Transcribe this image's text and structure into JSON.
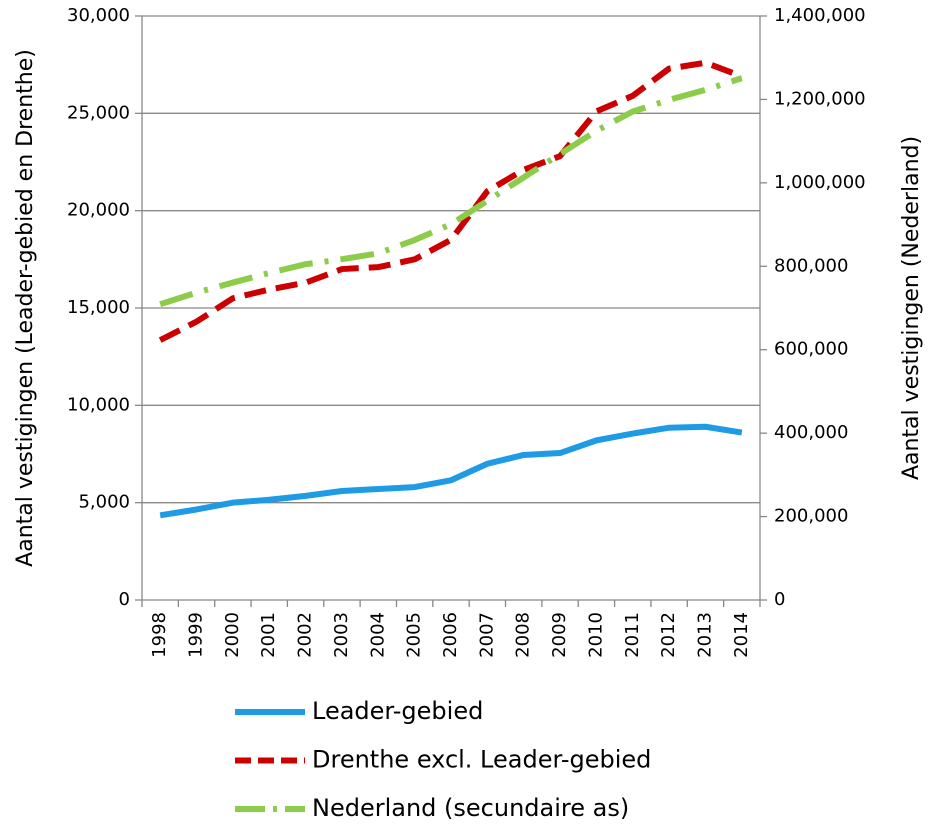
{
  "chart_data": {
    "type": "line",
    "y_label": "Aantal vestigingen (Leader-gebied en Drenthe)",
    "y2_label": "Aantal vestigingen (Nederland)",
    "categories": [
      "1998",
      "1999",
      "2000",
      "2001",
      "2002",
      "2003",
      "2004",
      "2005",
      "2006",
      "2007",
      "2008",
      "2009",
      "2010",
      "2011",
      "2012",
      "2013",
      "2014"
    ],
    "series": [
      {
        "name": "Leader-gebied",
        "color": "#1f9be5",
        "dash": "solid",
        "values": [
          4350,
          4650,
          5000,
          5150,
          5350,
          5600,
          5700,
          5800,
          6150,
          7000,
          7450,
          7550,
          8200,
          8550,
          8850,
          8900,
          8600
        ]
      },
      {
        "name": "Drenthe excl. Leader-gebied",
        "color": "#cc0000",
        "dash": "dashed",
        "values": [
          13350,
          14300,
          15500,
          15950,
          16300,
          17000,
          17100,
          17500,
          18500,
          21000,
          22100,
          22800,
          25100,
          25900,
          27300,
          27600,
          26900
        ]
      },
      {
        "name": "Nederland (secundaire as)",
        "color": "#8ccc4a",
        "dash": "dash-dot",
        "axis": "y2",
        "values": [
          709000,
          737000,
          761000,
          784000,
          805000,
          817000,
          831000,
          863000,
          901000,
          957000,
          1013000,
          1069000,
          1125000,
          1171000,
          1199000,
          1223000,
          1251000
        ]
      }
    ],
    "ylim": [
      0,
      30000
    ],
    "yticks": [
      0,
      {
        "value": 5000,
        "label": "5,000"
      },
      {
        "value": 10000,
        "label": "10,000"
      },
      {
        "value": 15000,
        "label": "15,000"
      },
      {
        "value": 20000,
        "label": "20,000"
      },
      {
        "value": 25000,
        "label": "25,000"
      },
      {
        "value": 30000,
        "label": "30,000"
      }
    ],
    "y2lim": [
      0,
      1400000
    ],
    "y2ticks": [
      0,
      {
        "value": 200000,
        "label": "200,000"
      },
      {
        "value": 400000,
        "label": "400,000"
      },
      {
        "value": 600000,
        "label": "600,000"
      },
      {
        "value": 800000,
        "label": "800,000"
      },
      {
        "value": 1000000,
        "label": "1,000,000"
      },
      {
        "value": 1200000,
        "label": "1,200,000"
      },
      {
        "value": 1400000,
        "label": "1,400,000"
      }
    ],
    "grid": true
  }
}
